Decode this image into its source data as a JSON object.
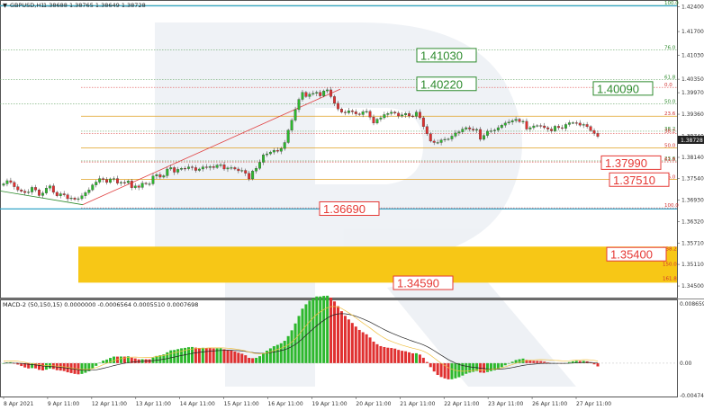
{
  "chart_data": {
    "type": "candlestick",
    "symbol_header": "GBPUSD,H1",
    "ohlc_header": "1.38688 1.38765 1.38649 1.38728",
    "current_price": 1.38728,
    "current_price_label": "1.38728",
    "price_axis": {
      "range": [
        1.344,
        1.4244
      ],
      "ticks": [
        "1.42400",
        "1.41700",
        "1.41030",
        "1.40350",
        "1.39970",
        "1.39360",
        "1.38740",
        "1.38140",
        "1.37540",
        "1.36930",
        "1.36320",
        "1.35710",
        "1.35110",
        "1.34500"
      ]
    },
    "time_axis": {
      "ticks": [
        "8 Apr 2021",
        "9 Apr 11:00",
        "12 Apr 11:00",
        "13 Apr 11:00",
        "14 Apr 11:00",
        "15 Apr 11:00",
        "16 Apr 11:00",
        "19 Apr 11:00",
        "20 Apr 11:00",
        "21 Apr 11:00",
        "22 Apr 11:00",
        "23 Apr 11:00",
        "26 Apr 11:00",
        "27 Apr 11:00"
      ]
    },
    "target_levels": [
      {
        "label": "1.41030",
        "value": 1.4103,
        "color": "#2e8b2e"
      },
      {
        "label": "1.40220",
        "value": 1.4022,
        "color": "#2e8b2e"
      },
      {
        "label": "1.40090",
        "value": 1.4009,
        "color": "#2e8b2e"
      },
      {
        "label": "1.37990",
        "value": 1.3799,
        "color": "#e53935"
      },
      {
        "label": "1.37510",
        "value": 1.3751,
        "color": "#e53935"
      },
      {
        "label": "1.36690",
        "value": 1.3669,
        "color": "#e53935"
      },
      {
        "label": "1.35400",
        "value": 1.354,
        "color": "#e53935"
      },
      {
        "label": "1.34590",
        "value": 1.3459,
        "color": "#e53935"
      }
    ],
    "fib_green": [
      {
        "label": "100.0",
        "value": 1.4244
      },
      {
        "label": "76.0",
        "value": 1.41175
      },
      {
        "label": "61.8",
        "value": 1.40345
      },
      {
        "label": "50.0",
        "value": 1.3966
      }
    ],
    "fib_orange": [
      {
        "label": "0.0",
        "value": 1.4012
      },
      {
        "label": "23.6",
        "value": 1.39305
      },
      {
        "label": "38.2",
        "value": 1.3881
      },
      {
        "label": "50.0",
        "value": 1.3841
      },
      {
        "label": "61.8",
        "value": 1.3801
      },
      {
        "label": "76.0",
        "value": 1.3752
      },
      {
        "label": "100.0",
        "value": 1.3671
      }
    ],
    "fib_green_lower": [
      {
        "label": "38.2",
        "value": 1.3888
      },
      {
        "label": "23.6",
        "value": 1.3804
      }
    ],
    "zone": {
      "from": 1.34594,
      "to": 1.35614,
      "labels": [
        {
          "label": "138.2",
          "value": 1.3556
        },
        {
          "label": "150.0",
          "value": 1.3512
        },
        {
          "label": "161.8",
          "value": 1.3472
        }
      ]
    },
    "macd": {
      "title": "MACD-2 (50,150,15) 0.0000000 -0.0006564 0.0005510 0.0007698",
      "ticks": [
        "0.0086596",
        "0.00",
        "-0.004740"
      ],
      "range": [
        -0.00474,
        0.0086596
      ]
    },
    "candles_close": [
      1.3739,
      1.3748,
      1.3743,
      1.3731,
      1.3722,
      1.3718,
      1.3714,
      1.3716,
      1.3729,
      1.3722,
      1.3706,
      1.3713,
      1.3727,
      1.3733,
      1.3715,
      1.3705,
      1.3711,
      1.3708,
      1.3697,
      1.3699,
      1.3695,
      1.3697,
      1.3705,
      1.3714,
      1.3722,
      1.3736,
      1.3744,
      1.3754,
      1.3751,
      1.3743,
      1.3753,
      1.3754,
      1.3741,
      1.3743,
      1.3742,
      1.3747,
      1.3728,
      1.3733,
      1.3729,
      1.3741,
      1.3739,
      1.3739,
      1.3761,
      1.3765,
      1.3758,
      1.3762,
      1.3781,
      1.3785,
      1.3772,
      1.378,
      1.3783,
      1.3782,
      1.3787,
      1.3785,
      1.3777,
      1.3781,
      1.3787,
      1.3785,
      1.3788,
      1.3785,
      1.3792,
      1.3793,
      1.3781,
      1.3784,
      1.3785,
      1.3781,
      1.3776,
      1.3777,
      1.3769,
      1.3753,
      1.3775,
      1.3783,
      1.38,
      1.3821,
      1.3824,
      1.3829,
      1.3834,
      1.3831,
      1.3839,
      1.3856,
      1.3891,
      1.3919,
      1.3949,
      1.3978,
      1.3998,
      1.3986,
      1.3993,
      1.3995,
      1.3998,
      1.3988,
      1.4002,
      1.4005,
      1.3986,
      1.3967,
      1.3951,
      1.3942,
      1.394,
      1.3946,
      1.3943,
      1.3937,
      1.3935,
      1.3943,
      1.3944,
      1.3928,
      1.3911,
      1.3922,
      1.3926,
      1.3935,
      1.3938,
      1.3942,
      1.3939,
      1.3931,
      1.3934,
      1.3938,
      1.3931,
      1.393,
      1.3942,
      1.3926,
      1.3901,
      1.3881,
      1.386,
      1.3856,
      1.3856,
      1.3863,
      1.3865,
      1.3866,
      1.3874,
      1.3883,
      1.3886,
      1.3894,
      1.3898,
      1.3894,
      1.3891,
      1.3893,
      1.3865,
      1.3876,
      1.3888,
      1.3889,
      1.3891,
      1.3898,
      1.3905,
      1.3911,
      1.3914,
      1.3918,
      1.3922,
      1.3915,
      1.3916,
      1.3894,
      1.3898,
      1.3903,
      1.3904,
      1.3903,
      1.3898,
      1.3894,
      1.3889,
      1.3902,
      1.3898,
      1.3896,
      1.3907,
      1.3912,
      1.3912,
      1.3911,
      1.3905,
      1.3907,
      1.3901,
      1.389,
      1.3882,
      1.3873
    ]
  }
}
